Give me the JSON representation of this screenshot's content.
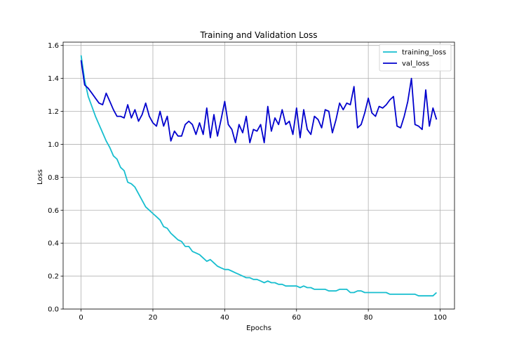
{
  "chart_data": {
    "type": "line",
    "title": "Training and Validation Loss",
    "xlabel": "Epochs",
    "ylabel": "Loss",
    "xlim": [
      -5,
      104
    ],
    "ylim": [
      0.0,
      1.62
    ],
    "xticks": [
      0,
      20,
      40,
      60,
      80,
      100
    ],
    "yticks": [
      0.0,
      0.2,
      0.4,
      0.6,
      0.8,
      1.0,
      1.2,
      1.4,
      1.6
    ],
    "grid": true,
    "legend_position": "top-right",
    "series": [
      {
        "name": "training_loss",
        "color": "#17becf",
        "x": [
          0,
          1,
          2,
          3,
          4,
          5,
          6,
          7,
          8,
          9,
          10,
          11,
          12,
          13,
          14,
          15,
          16,
          17,
          18,
          19,
          20,
          21,
          22,
          23,
          24,
          25,
          26,
          27,
          28,
          29,
          30,
          31,
          32,
          33,
          34,
          35,
          36,
          37,
          38,
          39,
          40,
          41,
          42,
          43,
          44,
          45,
          46,
          47,
          48,
          49,
          50,
          51,
          52,
          53,
          54,
          55,
          56,
          57,
          58,
          59,
          60,
          61,
          62,
          63,
          64,
          65,
          66,
          67,
          68,
          69,
          70,
          71,
          72,
          73,
          74,
          75,
          76,
          77,
          78,
          79,
          80,
          81,
          82,
          83,
          84,
          85,
          86,
          87,
          88,
          89,
          90,
          91,
          92,
          93,
          94,
          95,
          96,
          97,
          98,
          99
        ],
        "y": [
          1.54,
          1.39,
          1.29,
          1.23,
          1.17,
          1.12,
          1.07,
          1.02,
          0.98,
          0.93,
          0.91,
          0.86,
          0.84,
          0.77,
          0.76,
          0.74,
          0.7,
          0.66,
          0.62,
          0.6,
          0.58,
          0.56,
          0.54,
          0.5,
          0.49,
          0.46,
          0.44,
          0.42,
          0.41,
          0.38,
          0.38,
          0.35,
          0.34,
          0.33,
          0.31,
          0.29,
          0.3,
          0.28,
          0.26,
          0.25,
          0.24,
          0.24,
          0.23,
          0.22,
          0.21,
          0.2,
          0.19,
          0.19,
          0.18,
          0.18,
          0.17,
          0.16,
          0.17,
          0.16,
          0.16,
          0.15,
          0.15,
          0.14,
          0.14,
          0.14,
          0.14,
          0.13,
          0.14,
          0.13,
          0.13,
          0.12,
          0.12,
          0.12,
          0.12,
          0.11,
          0.11,
          0.11,
          0.12,
          0.12,
          0.12,
          0.1,
          0.1,
          0.11,
          0.11,
          0.1,
          0.1,
          0.1,
          0.1,
          0.1,
          0.1,
          0.1,
          0.09,
          0.09,
          0.09,
          0.09,
          0.09,
          0.09,
          0.09,
          0.09,
          0.08,
          0.08,
          0.08,
          0.08,
          0.08,
          0.1
        ]
      },
      {
        "name": "val_loss",
        "color": "#0000cd",
        "x": [
          0,
          1,
          2,
          3,
          4,
          5,
          6,
          7,
          8,
          9,
          10,
          11,
          12,
          13,
          14,
          15,
          16,
          17,
          18,
          19,
          20,
          21,
          22,
          23,
          24,
          25,
          26,
          27,
          28,
          29,
          30,
          31,
          32,
          33,
          34,
          35,
          36,
          37,
          38,
          39,
          40,
          41,
          42,
          43,
          44,
          45,
          46,
          47,
          48,
          49,
          50,
          51,
          52,
          53,
          54,
          55,
          56,
          57,
          58,
          59,
          60,
          61,
          62,
          63,
          64,
          65,
          66,
          67,
          68,
          69,
          70,
          71,
          72,
          73,
          74,
          75,
          76,
          77,
          78,
          79,
          80,
          81,
          82,
          83,
          84,
          85,
          86,
          87,
          88,
          89,
          90,
          91,
          92,
          93,
          94,
          95,
          96,
          97,
          98,
          99
        ],
        "y": [
          1.51,
          1.36,
          1.34,
          1.31,
          1.28,
          1.25,
          1.24,
          1.31,
          1.26,
          1.21,
          1.17,
          1.17,
          1.16,
          1.24,
          1.16,
          1.21,
          1.14,
          1.18,
          1.25,
          1.17,
          1.13,
          1.11,
          1.2,
          1.11,
          1.17,
          1.02,
          1.08,
          1.05,
          1.05,
          1.12,
          1.14,
          1.12,
          1.06,
          1.13,
          1.06,
          1.22,
          1.04,
          1.18,
          1.05,
          1.15,
          1.26,
          1.12,
          1.09,
          1.01,
          1.12,
          1.07,
          1.17,
          1.01,
          1.09,
          1.08,
          1.12,
          1.01,
          1.23,
          1.08,
          1.16,
          1.12,
          1.21,
          1.12,
          1.14,
          1.06,
          1.22,
          1.04,
          1.21,
          1.09,
          1.06,
          1.17,
          1.15,
          1.1,
          1.21,
          1.2,
          1.07,
          1.15,
          1.25,
          1.21,
          1.25,
          1.24,
          1.35,
          1.1,
          1.12,
          1.19,
          1.28,
          1.19,
          1.17,
          1.23,
          1.22,
          1.24,
          1.27,
          1.29,
          1.11,
          1.1,
          1.17,
          1.26,
          1.4,
          1.12,
          1.11,
          1.09,
          1.33,
          1.11,
          1.22,
          1.15
        ]
      }
    ]
  }
}
